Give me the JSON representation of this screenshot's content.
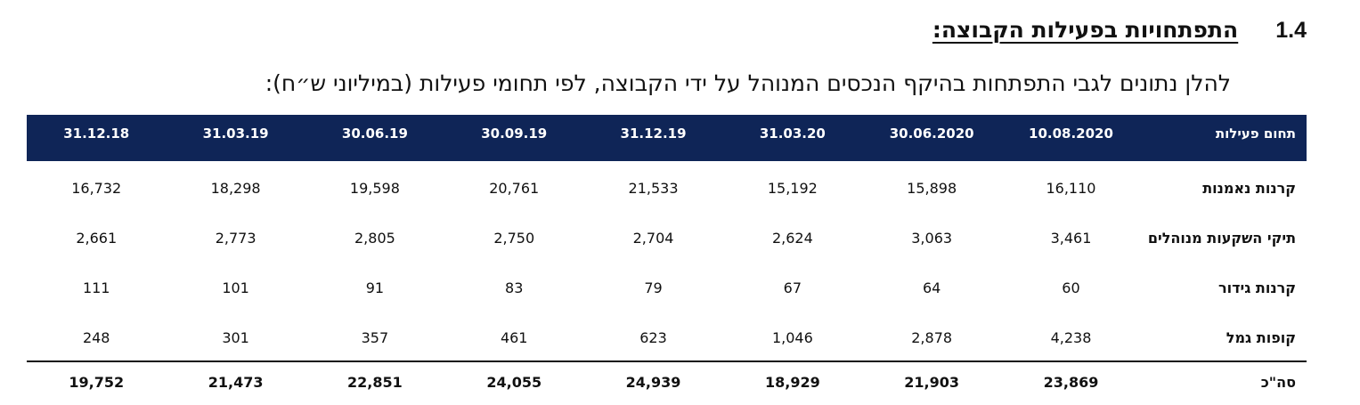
{
  "section": {
    "number": "1.4",
    "title": "התפתחויות בפעילות הקבוצה:"
  },
  "intro_text": "להלן נתונים לגבי התפתחות בהיקף הנכסים המנוהל על ידי הקבוצה, לפי תחומי פעילות (במיליוני ש״ח):",
  "table": {
    "header_label": "תחום פעילות",
    "dates": [
      "10.08.2020",
      "30.06.2020",
      "31.03.20",
      "31.12.19",
      "30.09.19",
      "30.06.19",
      "31.03.19",
      "31.12.18"
    ],
    "rows": [
      {
        "label": "קרנות נאמנות",
        "values": [
          "16,110",
          "15,898",
          "15,192",
          "21,533",
          "20,761",
          "19,598",
          "18,298",
          "16,732"
        ]
      },
      {
        "label": "תיקי השקעות מנוהלים",
        "values": [
          "3,461",
          "3,063",
          "2,624",
          "2,704",
          "2,750",
          "2,805",
          "2,773",
          "2,661"
        ]
      },
      {
        "label": "קרנות גידור",
        "values": [
          "60",
          "64",
          "67",
          "79",
          "83",
          "91",
          "101",
          "111"
        ]
      },
      {
        "label": "קופות גמל",
        "values": [
          "4,238",
          "2,878",
          "1,046",
          "623",
          "461",
          "357",
          "301",
          "248"
        ]
      }
    ],
    "total": {
      "label": "סה\"כ",
      "values": [
        "23,869",
        "21,903",
        "18,929",
        "24,939",
        "24,055",
        "22,851",
        "21,473",
        "19,752"
      ]
    }
  },
  "colors": {
    "header_bg": "#0f2557",
    "header_text": "#ffffff"
  }
}
